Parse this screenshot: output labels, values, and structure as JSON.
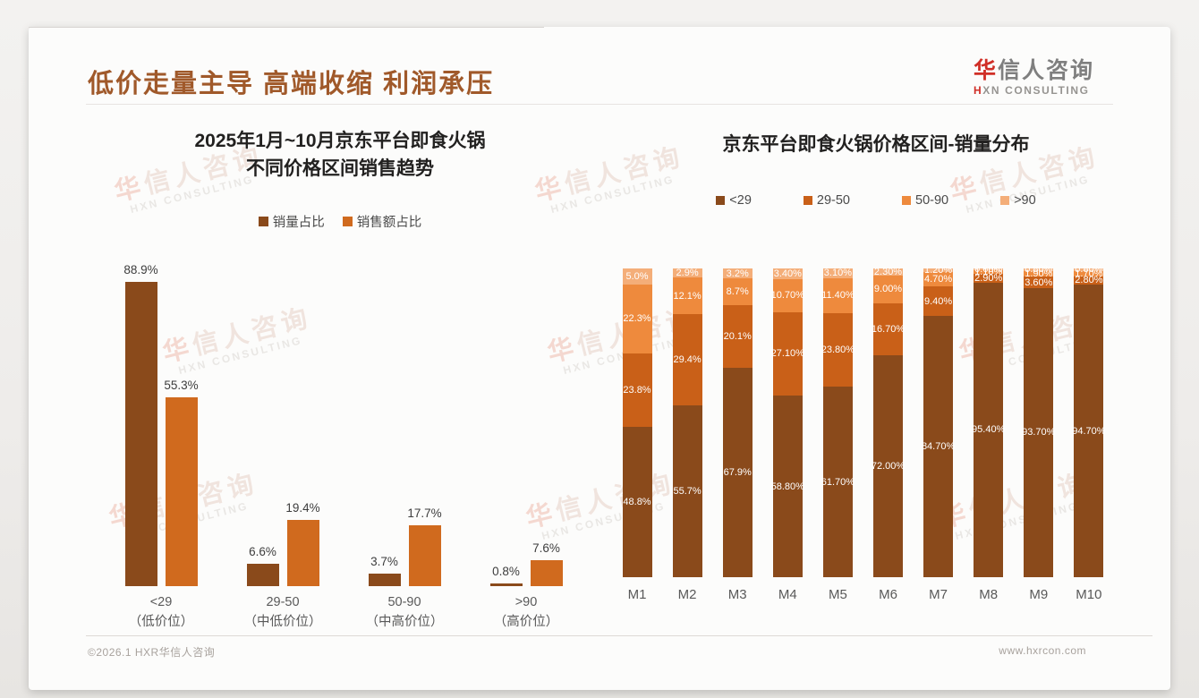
{
  "page": {
    "title": "低价走量主导 高端收缩 利润承压"
  },
  "logo": {
    "zh_first": "华",
    "zh_rest": "信人咨询",
    "en_first": "H",
    "en_rest": "XN CONSULTING"
  },
  "watermark": {
    "zh_first": "华",
    "zh_rest": "信人咨询",
    "en": "HXN CONSULTING"
  },
  "footer": {
    "left": "©2026.1 HXR华信人咨询",
    "right": "www.hxrcon.com"
  },
  "colors": {
    "title_brown": "#a0592a",
    "logo_red": "#d02f27",
    "dark_brown": "#8a4a1b",
    "mid_orange": "#c96018",
    "bright_orange": "#d06a1e",
    "light_orange": "#ee8a3d",
    "pale_orange": "#f4ae79"
  },
  "chart_data": [
    {
      "type": "bar",
      "title_lines": [
        "2025年1月~10月京东平台即食火锅",
        "不同价格区间销售趋势"
      ],
      "categories": [
        "<29",
        "29-50",
        "50-90",
        ">90"
      ],
      "category_sublabels": [
        "（低价位）",
        "（中低价位）",
        "（中高价位）",
        "（高价位）"
      ],
      "series": [
        {
          "name": "销量占比",
          "color": "#8a4a1b",
          "values": [
            88.9,
            6.6,
            3.7,
            0.8
          ],
          "labels": [
            "88.9%",
            "6.6%",
            "3.7%",
            "0.8%"
          ]
        },
        {
          "name": "销售额占比",
          "color": "#d06a1e",
          "values": [
            55.3,
            19.4,
            17.7,
            7.6
          ],
          "labels": [
            "55.3%",
            "19.4%",
            "17.7%",
            "7.6%"
          ]
        }
      ],
      "ylim": [
        0,
        100
      ],
      "grid": false,
      "legend_position": "top",
      "y_axis_visible": false
    },
    {
      "type": "bar",
      "stacked": true,
      "title": "京东平台即食火锅价格区间-销量分布",
      "categories": [
        "M1",
        "M2",
        "M3",
        "M4",
        "M5",
        "M6",
        "M7",
        "M8",
        "M9",
        "M10"
      ],
      "series": [
        {
          "name": "<29",
          "color": "#8a4a1b",
          "values": [
            48.8,
            55.7,
            67.9,
            58.8,
            61.7,
            72.0,
            84.7,
            95.4,
            93.7,
            94.7
          ],
          "labels": [
            "48.8%",
            "55.7%",
            "67.9%",
            "58.80%",
            "61.70%",
            "72.00%",
            "84.70%",
            "95.40%",
            "93.70%",
            "94.70%"
          ]
        },
        {
          "name": "29-50",
          "color": "#c96018",
          "values": [
            23.8,
            29.4,
            20.1,
            27.1,
            23.8,
            16.7,
            9.4,
            2.9,
            3.6,
            2.8
          ],
          "labels": [
            "23.8%",
            "29.4%",
            "20.1%",
            "27.10%",
            "23.80%",
            "16.70%",
            "9.40%",
            "2.90%",
            "3.60%",
            "2.80%"
          ]
        },
        {
          "name": "50-90",
          "color": "#ee8a3d",
          "values": [
            22.3,
            12.1,
            8.7,
            10.7,
            11.4,
            9.0,
            4.7,
            1.1,
            1.9,
            1.7
          ],
          "labels": [
            "22.3%",
            "12.1%",
            "8.7%",
            "10.70%",
            "11.40%",
            "9.00%",
            "4.70%",
            "1.10%",
            "1.90%",
            "1.70%"
          ]
        },
        {
          "name": ">90",
          "color": "#f4ae79",
          "values": [
            5.0,
            2.9,
            3.2,
            3.4,
            3.1,
            2.3,
            1.2,
            0.6,
            0.8,
            0.8
          ],
          "labels": [
            "5.0%",
            "2.9%",
            "3.2%",
            "3.40%",
            "3.10%",
            "2.30%",
            "1.20%",
            "0.60%",
            "0.80%",
            "0.80%"
          ]
        }
      ],
      "ylim": [
        0,
        100
      ],
      "grid": false,
      "legend_position": "top",
      "y_axis_visible": false
    }
  ]
}
